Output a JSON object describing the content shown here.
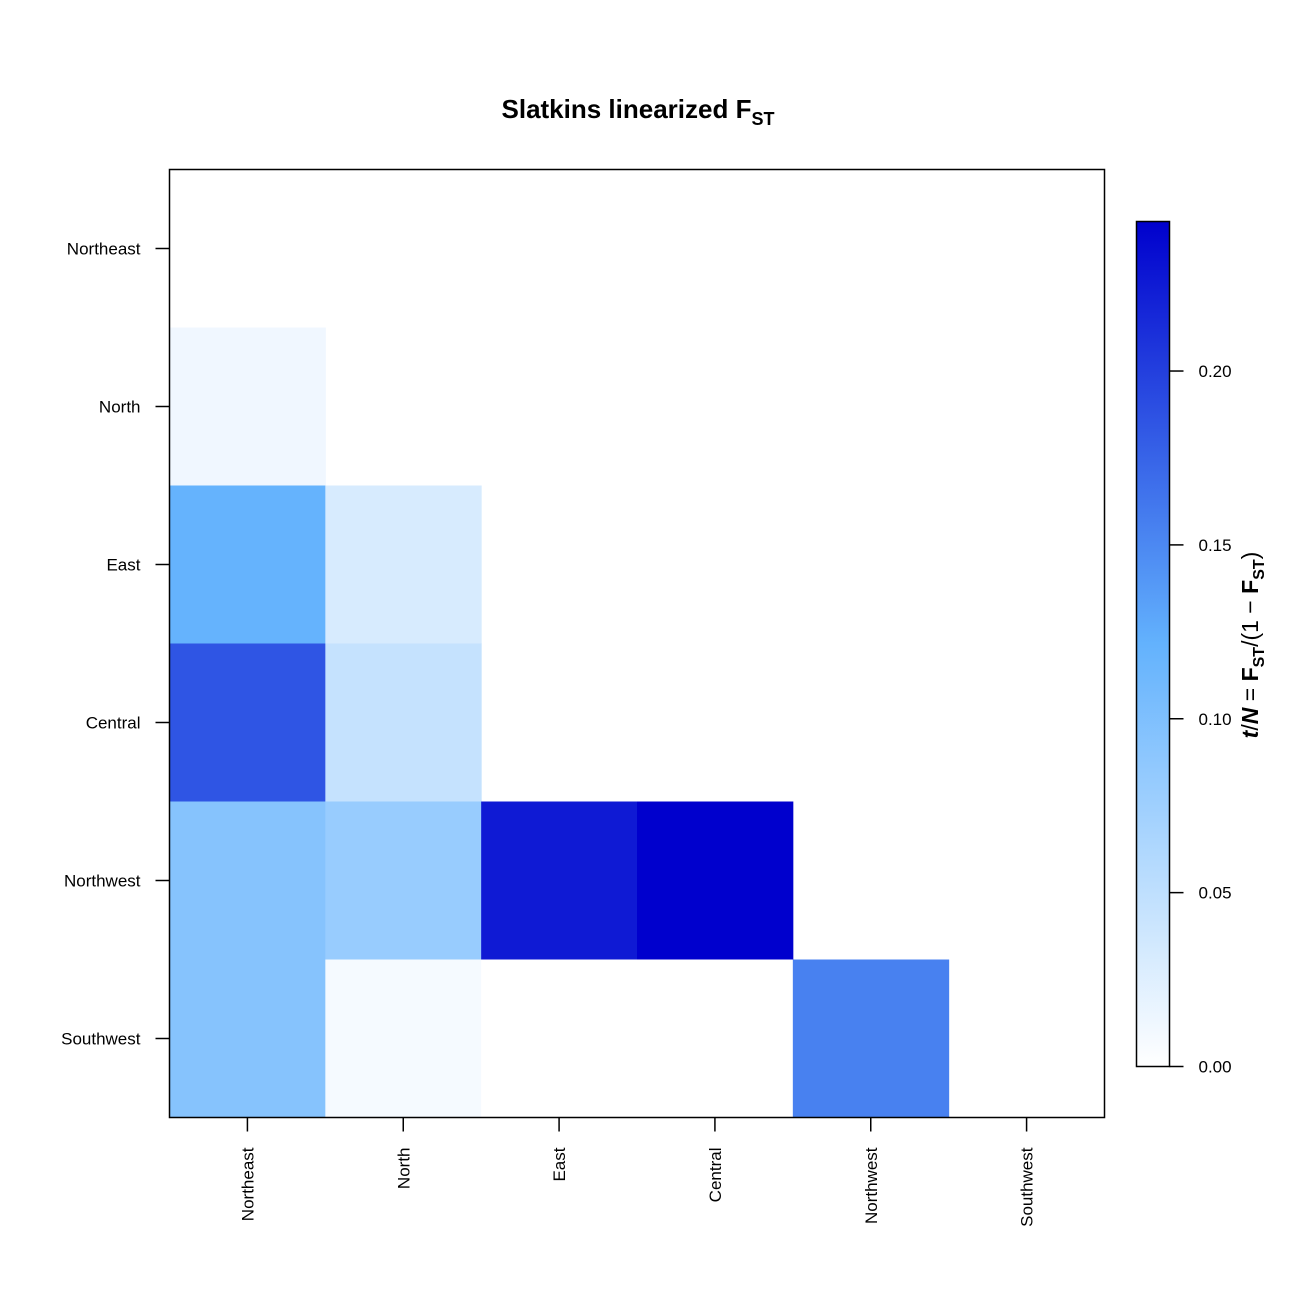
{
  "chart_data": {
    "type": "heatmap",
    "title": {
      "main": "Slatkins linearized F",
      "sub": "ST"
    },
    "x_categories": [
      "Northeast",
      "North",
      "East",
      "Central",
      "Northwest",
      "Southwest"
    ],
    "y_categories": [
      "Northeast",
      "North",
      "East",
      "Central",
      "Northwest",
      "Southwest"
    ],
    "matrix_shape": "lower-triangular",
    "cells": [
      {
        "row": "North",
        "col": "Northeast",
        "value": 0.012
      },
      {
        "row": "East",
        "col": "Northeast",
        "value": 0.12
      },
      {
        "row": "East",
        "col": "North",
        "value": 0.031
      },
      {
        "row": "Central",
        "col": "Northeast",
        "value": 0.185
      },
      {
        "row": "Central",
        "col": "North",
        "value": 0.045
      },
      {
        "row": "Northwest",
        "col": "Northeast",
        "value": 0.094
      },
      {
        "row": "Northwest",
        "col": "North",
        "value": 0.08
      },
      {
        "row": "Northwest",
        "col": "East",
        "value": 0.225
      },
      {
        "row": "Northwest",
        "col": "Central",
        "value": 0.243
      },
      {
        "row": "Southwest",
        "col": "Northeast",
        "value": 0.094
      },
      {
        "row": "Southwest",
        "col": "North",
        "value": 0.008
      },
      {
        "row": "Southwest",
        "col": "East",
        "value": 0.0
      },
      {
        "row": "Southwest",
        "col": "Central",
        "value": 0.0
      },
      {
        "row": "Southwest",
        "col": "Northwest",
        "value": 0.155
      }
    ],
    "colorbar": {
      "range": [
        0,
        0.243
      ],
      "ticks": [
        {
          "value": 0.0,
          "label": "0.00"
        },
        {
          "value": 0.05,
          "label": "0.05"
        },
        {
          "value": 0.1,
          "label": "0.10"
        },
        {
          "value": 0.15,
          "label": "0.15"
        },
        {
          "value": 0.2,
          "label": "0.20"
        }
      ],
      "title": {
        "t1": "t",
        "t2": "/",
        "t3": "N",
        "t4": " = ",
        "t5": "F",
        "t6": "ST",
        "t7": "/",
        "t8": "(1 − ",
        "t9": "F",
        "t10": "ST",
        "t11": ")"
      },
      "color_stops": [
        "#ffffff",
        "#63b2fd",
        "#0000cd"
      ]
    }
  }
}
